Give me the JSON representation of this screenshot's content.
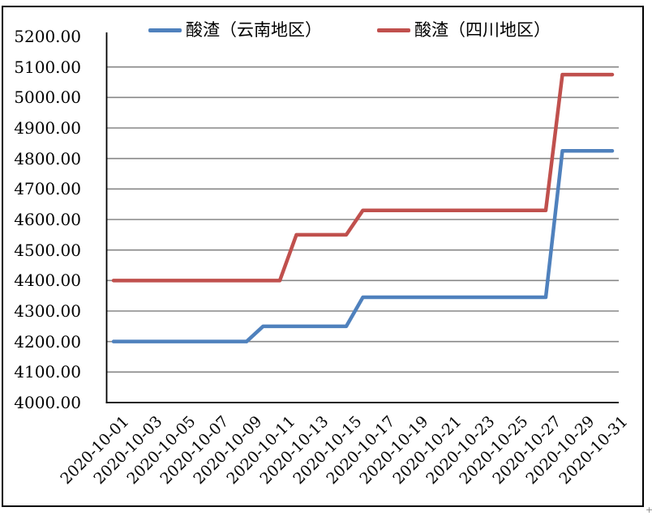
{
  "chart_data": {
    "type": "line",
    "title": "",
    "xlabel": "",
    "ylabel": "",
    "x": [
      "2020-10-01",
      "2020-10-02",
      "2020-10-03",
      "2020-10-04",
      "2020-10-05",
      "2020-10-06",
      "2020-10-07",
      "2020-10-08",
      "2020-10-09",
      "2020-10-10",
      "2020-10-11",
      "2020-10-12",
      "2020-10-13",
      "2020-10-14",
      "2020-10-15",
      "2020-10-16",
      "2020-10-17",
      "2020-10-18",
      "2020-10-19",
      "2020-10-20",
      "2020-10-21",
      "2020-10-22",
      "2020-10-23",
      "2020-10-24",
      "2020-10-25",
      "2020-10-26",
      "2020-10-27",
      "2020-10-28",
      "2020-10-29",
      "2020-10-30",
      "2020-10-31"
    ],
    "x_tick_labels": [
      "2020-10-01",
      "2020-10-03",
      "2020-10-05",
      "2020-10-07",
      "2020-10-09",
      "2020-10-11",
      "2020-10-13",
      "2020-10-15",
      "2020-10-17",
      "2020-10-19",
      "2020-10-21",
      "2020-10-23",
      "2020-10-25",
      "2020-10-27",
      "2020-10-29",
      "2020-10-31"
    ],
    "series": [
      {
        "name": "酸渣（云南地区）",
        "color": "#4F81BD",
        "values": [
          4200,
          4200,
          4200,
          4200,
          4200,
          4200,
          4200,
          4200,
          4200,
          4250,
          4250,
          4250,
          4250,
          4250,
          4250,
          4345,
          4345,
          4345,
          4345,
          4345,
          4345,
          4345,
          4345,
          4345,
          4345,
          4345,
          4345,
          4825,
          4825,
          4825,
          4825
        ]
      },
      {
        "name": "酸渣（四川地区）",
        "color": "#C0504D",
        "values": [
          4400,
          4400,
          4400,
          4400,
          4400,
          4400,
          4400,
          4400,
          4400,
          4400,
          4400,
          4550,
          4550,
          4550,
          4550,
          4630,
          4630,
          4630,
          4630,
          4630,
          4630,
          4630,
          4630,
          4630,
          4630,
          4630,
          4630,
          5075,
          5075,
          5075,
          5075
        ]
      }
    ],
    "ylim": [
      4000,
      5200
    ],
    "y_tick_step": 100,
    "y_ticks": [
      "4000.00",
      "4100.00",
      "4200.00",
      "4300.00",
      "4400.00",
      "4500.00",
      "4600.00",
      "4700.00",
      "4800.00",
      "4900.00",
      "5000.00",
      "5100.00",
      "5200.00"
    ],
    "grid": "horizontal",
    "gridline_color": "#878787",
    "axis_color": "#000000",
    "legend_position": "top"
  },
  "legend": {
    "items": [
      {
        "label": "酸渣（云南地区）",
        "color": "#4F81BD"
      },
      {
        "label": "酸渣（四川地区）",
        "color": "#C0504D"
      }
    ]
  },
  "cursor_artifact": "+"
}
